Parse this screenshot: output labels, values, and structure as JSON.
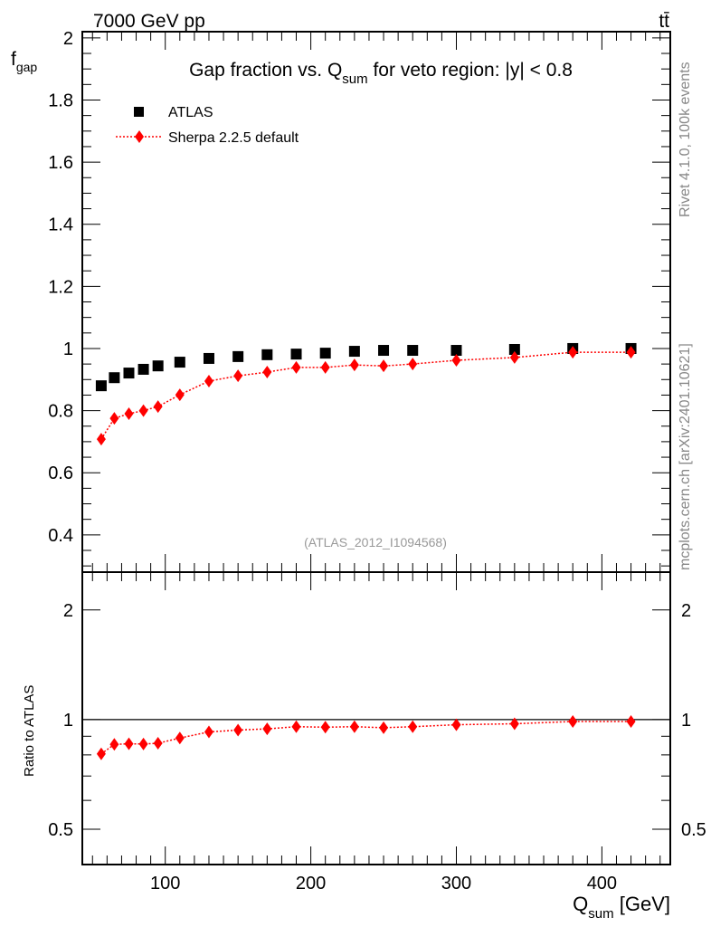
{
  "header": {
    "energy": "7000 GeV pp",
    "process": "tt̄"
  },
  "side_text": {
    "rivet": "Rivet 4.1.0,  100k events",
    "source": "mcplots.cern.ch [arXiv:2401.10621]"
  },
  "watermark": "(ATLAS_2012_I1094568)",
  "chart_data": [
    {
      "type": "scatter",
      "title": {
        "main": "Gap fraction vs. Q",
        "sub": "sum",
        "rest": " for veto region: |y| < 0.8"
      },
      "ylabel": {
        "main": "f",
        "sub": "gap"
      },
      "xlim": [
        43,
        447
      ],
      "ylim": [
        0.28,
        2.02
      ],
      "yticks": [
        0.4,
        0.6,
        0.8,
        1,
        1.2,
        1.4,
        1.6,
        1.8,
        2
      ],
      "ytick_labels": [
        "0.4",
        "0.6",
        "0.8",
        "1",
        "1.2",
        "1.4",
        "1.6",
        "1.8",
        "2"
      ],
      "legend_position": "top-left",
      "x": [
        56,
        65,
        75,
        85,
        95,
        110,
        130,
        150,
        170,
        190,
        210,
        230,
        250,
        270,
        300,
        340,
        380,
        420
      ],
      "series": [
        {
          "name": "ATLAS",
          "color": "#000000",
          "marker": "square",
          "values": [
            0.88,
            0.906,
            0.921,
            0.933,
            0.944,
            0.956,
            0.968,
            0.974,
            0.98,
            0.982,
            0.985,
            0.991,
            0.994,
            0.994,
            0.994,
            0.997,
            1.0,
            1.0
          ]
        },
        {
          "name": "Sherpa 2.2.5 default",
          "color": "#ff0000",
          "marker": "diamond",
          "line": "dotted",
          "values": [
            0.708,
            0.775,
            0.79,
            0.8,
            0.813,
            0.851,
            0.895,
            0.912,
            0.924,
            0.939,
            0.939,
            0.947,
            0.944,
            0.95,
            0.962,
            0.971,
            0.988,
            0.988
          ]
        }
      ]
    },
    {
      "type": "scatter",
      "ylabel": "Ratio to ATLAS",
      "yscale": "log",
      "ylim": [
        0.4,
        2.54
      ],
      "yticks": [
        0.5,
        1,
        2
      ],
      "ytick_labels": [
        "0.5",
        "1",
        "2"
      ],
      "xlabel": {
        "main": "Q",
        "sub": "sum",
        "rest": " [GeV]"
      },
      "xticks": [
        100,
        200,
        300,
        400
      ],
      "xtick_labels": [
        "100",
        "200",
        "300",
        "400"
      ],
      "reference_line": 1,
      "series": [
        {
          "name": "Sherpa 2.2.5 default / ATLAS",
          "color": "#ff0000",
          "values": [
            0.805,
            0.855,
            0.858,
            0.857,
            0.861,
            0.89,
            0.925,
            0.936,
            0.943,
            0.956,
            0.953,
            0.956,
            0.95,
            0.956,
            0.968,
            0.974,
            0.988,
            0.988
          ]
        }
      ]
    }
  ]
}
